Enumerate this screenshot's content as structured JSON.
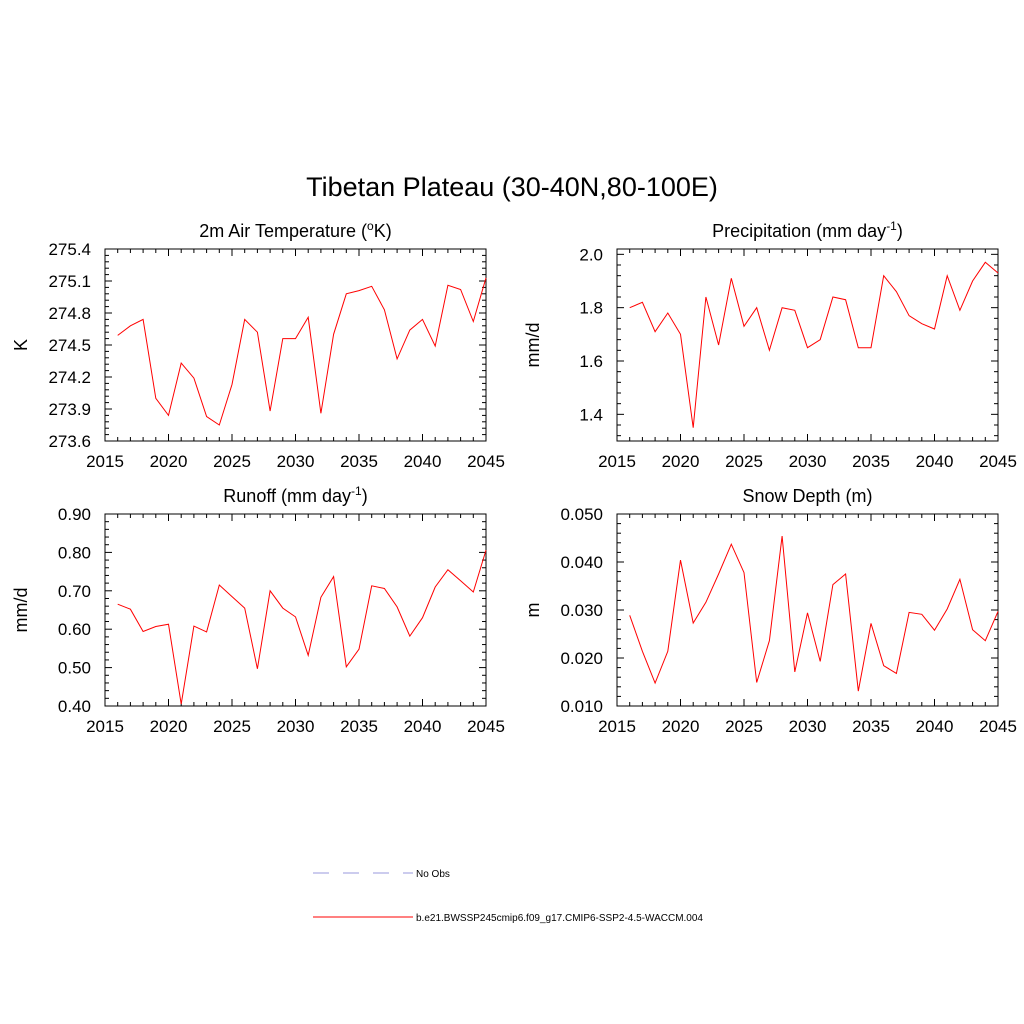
{
  "figure": {
    "title": "Tibetan Plateau (30-40N,80-100E)"
  },
  "legend": {
    "items": [
      {
        "label": "No Obs",
        "color": "#9999dd",
        "style": "dashed"
      },
      {
        "label": "b.e21.BWSSP245cmip6.f09_g17.CMIP6-SSP2-4.5-WACCM.004",
        "color": "#ff0000",
        "style": "solid"
      }
    ]
  },
  "chart_data": [
    {
      "type": "line",
      "title": "2m Air Temperature (",
      "title_sup": "o",
      "title_tail": "K)",
      "ylabel": "K",
      "xlim": [
        2015,
        2045
      ],
      "ylim": [
        273.6,
        275.4
      ],
      "xticks": [
        "2015",
        "2020",
        "2025",
        "2030",
        "2035",
        "2040",
        "2045"
      ],
      "yticks": [
        "273.6",
        "273.9",
        "274.2",
        "274.5",
        "274.8",
        "275.1",
        "275.4"
      ],
      "color": "#ff0000",
      "x": [
        2016,
        2017,
        2018,
        2019,
        2020,
        2021,
        2022,
        2023,
        2024,
        2025,
        2026,
        2027,
        2028,
        2029,
        2030,
        2031,
        2032,
        2033,
        2034,
        2035,
        2036,
        2037,
        2038,
        2039,
        2040,
        2041,
        2042,
        2043,
        2044,
        2045
      ],
      "y": [
        274.59,
        274.68,
        274.74,
        274.0,
        273.84,
        274.33,
        274.19,
        273.83,
        273.75,
        274.13,
        274.74,
        274.62,
        273.88,
        274.56,
        274.56,
        274.76,
        273.86,
        274.6,
        274.98,
        275.01,
        275.05,
        274.83,
        274.37,
        274.64,
        274.74,
        274.49,
        275.06,
        275.02,
        274.72,
        275.13
      ]
    },
    {
      "type": "line",
      "title": "Precipitation (mm day",
      "title_sup": "-1",
      "title_tail": ")",
      "ylabel": "mm/d",
      "xlim": [
        2015,
        2045
      ],
      "ylim": [
        1.3,
        2.02
      ],
      "xticks": [
        "2015",
        "2020",
        "2025",
        "2030",
        "2035",
        "2040",
        "2045"
      ],
      "yticks": [
        "1.4",
        "1.6",
        "1.8",
        "2.0"
      ],
      "color": "#ff0000",
      "x": [
        2016,
        2017,
        2018,
        2019,
        2020,
        2021,
        2022,
        2023,
        2024,
        2025,
        2026,
        2027,
        2028,
        2029,
        2030,
        2031,
        2032,
        2033,
        2034,
        2035,
        2036,
        2037,
        2038,
        2039,
        2040,
        2041,
        2042,
        2043,
        2044,
        2045
      ],
      "y": [
        1.8,
        1.82,
        1.71,
        1.78,
        1.7,
        1.35,
        1.84,
        1.66,
        1.91,
        1.73,
        1.8,
        1.64,
        1.8,
        1.79,
        1.65,
        1.68,
        1.84,
        1.83,
        1.65,
        1.65,
        1.92,
        1.86,
        1.77,
        1.74,
        1.72,
        1.92,
        1.79,
        1.9,
        1.97,
        1.93
      ]
    },
    {
      "type": "line",
      "title": "Runoff (mm day",
      "title_sup": "-1",
      "title_tail": ")",
      "ylabel": "mm/d",
      "xlim": [
        2015,
        2045
      ],
      "ylim": [
        0.4,
        0.9
      ],
      "xticks": [
        "2015",
        "2020",
        "2025",
        "2030",
        "2035",
        "2040",
        "2045"
      ],
      "yticks": [
        "0.40",
        "0.50",
        "0.60",
        "0.70",
        "0.80",
        "0.90"
      ],
      "color": "#ff0000",
      "x": [
        2016,
        2017,
        2018,
        2019,
        2020,
        2021,
        2022,
        2023,
        2024,
        2025,
        2026,
        2027,
        2028,
        2029,
        2030,
        2031,
        2032,
        2033,
        2034,
        2035,
        2036,
        2037,
        2038,
        2039,
        2040,
        2041,
        2042,
        2043,
        2044,
        2045
      ],
      "y": [
        0.665,
        0.652,
        0.594,
        0.607,
        0.613,
        0.405,
        0.608,
        0.593,
        0.715,
        0.685,
        0.655,
        0.497,
        0.7,
        0.655,
        0.632,
        0.532,
        0.683,
        0.737,
        0.502,
        0.548,
        0.713,
        0.706,
        0.658,
        0.582,
        0.63,
        0.71,
        0.755,
        0.726,
        0.697,
        0.806
      ]
    },
    {
      "type": "line",
      "title": "Snow Depth (m)",
      "title_sup": "",
      "title_tail": "",
      "ylabel": "m",
      "xlim": [
        2015,
        2045
      ],
      "ylim": [
        0.01,
        0.05
      ],
      "xticks": [
        "2015",
        "2020",
        "2025",
        "2030",
        "2035",
        "2040",
        "2045"
      ],
      "yticks": [
        "0.010",
        "0.020",
        "0.030",
        "0.040",
        "0.050"
      ],
      "color": "#ff0000",
      "x": [
        2016,
        2017,
        2018,
        2019,
        2020,
        2021,
        2022,
        2023,
        2024,
        2025,
        2026,
        2027,
        2028,
        2029,
        2030,
        2031,
        2032,
        2033,
        2034,
        2035,
        2036,
        2037,
        2038,
        2039,
        2040,
        2041,
        2042,
        2043,
        2044,
        2045
      ],
      "y": [
        0.0289,
        0.0214,
        0.0148,
        0.0214,
        0.0404,
        0.0273,
        0.0316,
        0.0375,
        0.0437,
        0.0378,
        0.0149,
        0.0236,
        0.0454,
        0.0171,
        0.0294,
        0.0193,
        0.0353,
        0.0375,
        0.0131,
        0.0272,
        0.0184,
        0.0168,
        0.0295,
        0.0291,
        0.0258,
        0.0302,
        0.0364,
        0.0259,
        0.0236,
        0.0297
      ]
    }
  ]
}
